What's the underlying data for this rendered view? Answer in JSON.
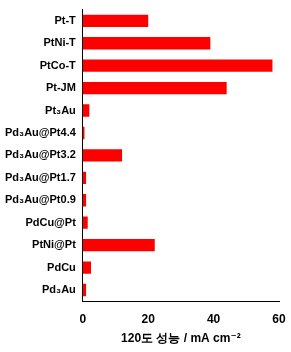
{
  "chart_data": {
    "type": "bar",
    "orientation": "horizontal",
    "x_label": "120도 성능 / mA cm⁻²",
    "categories": [
      "Pt-T",
      "PtNi-T",
      "PtCo-T",
      "Pt-JM",
      "Pt₃Au",
      "Pd₃Au@Pt4.4",
      "Pd₃Au@Pt3.2",
      "Pd₃Au@Pt1.7",
      "Pd₃Au@Pt0.9",
      "PdCu@Pt",
      "PtNi@Pt",
      "PdCu",
      "Pd₃Au"
    ],
    "values": [
      20,
      39,
      58,
      44,
      2,
      0.5,
      12,
      1,
      1,
      1.5,
      22,
      2.5,
      1
    ],
    "color": "#ff0000",
    "xlim": [
      0,
      60
    ],
    "xticks": [
      0,
      20,
      40,
      60
    ],
    "grid": false
  }
}
